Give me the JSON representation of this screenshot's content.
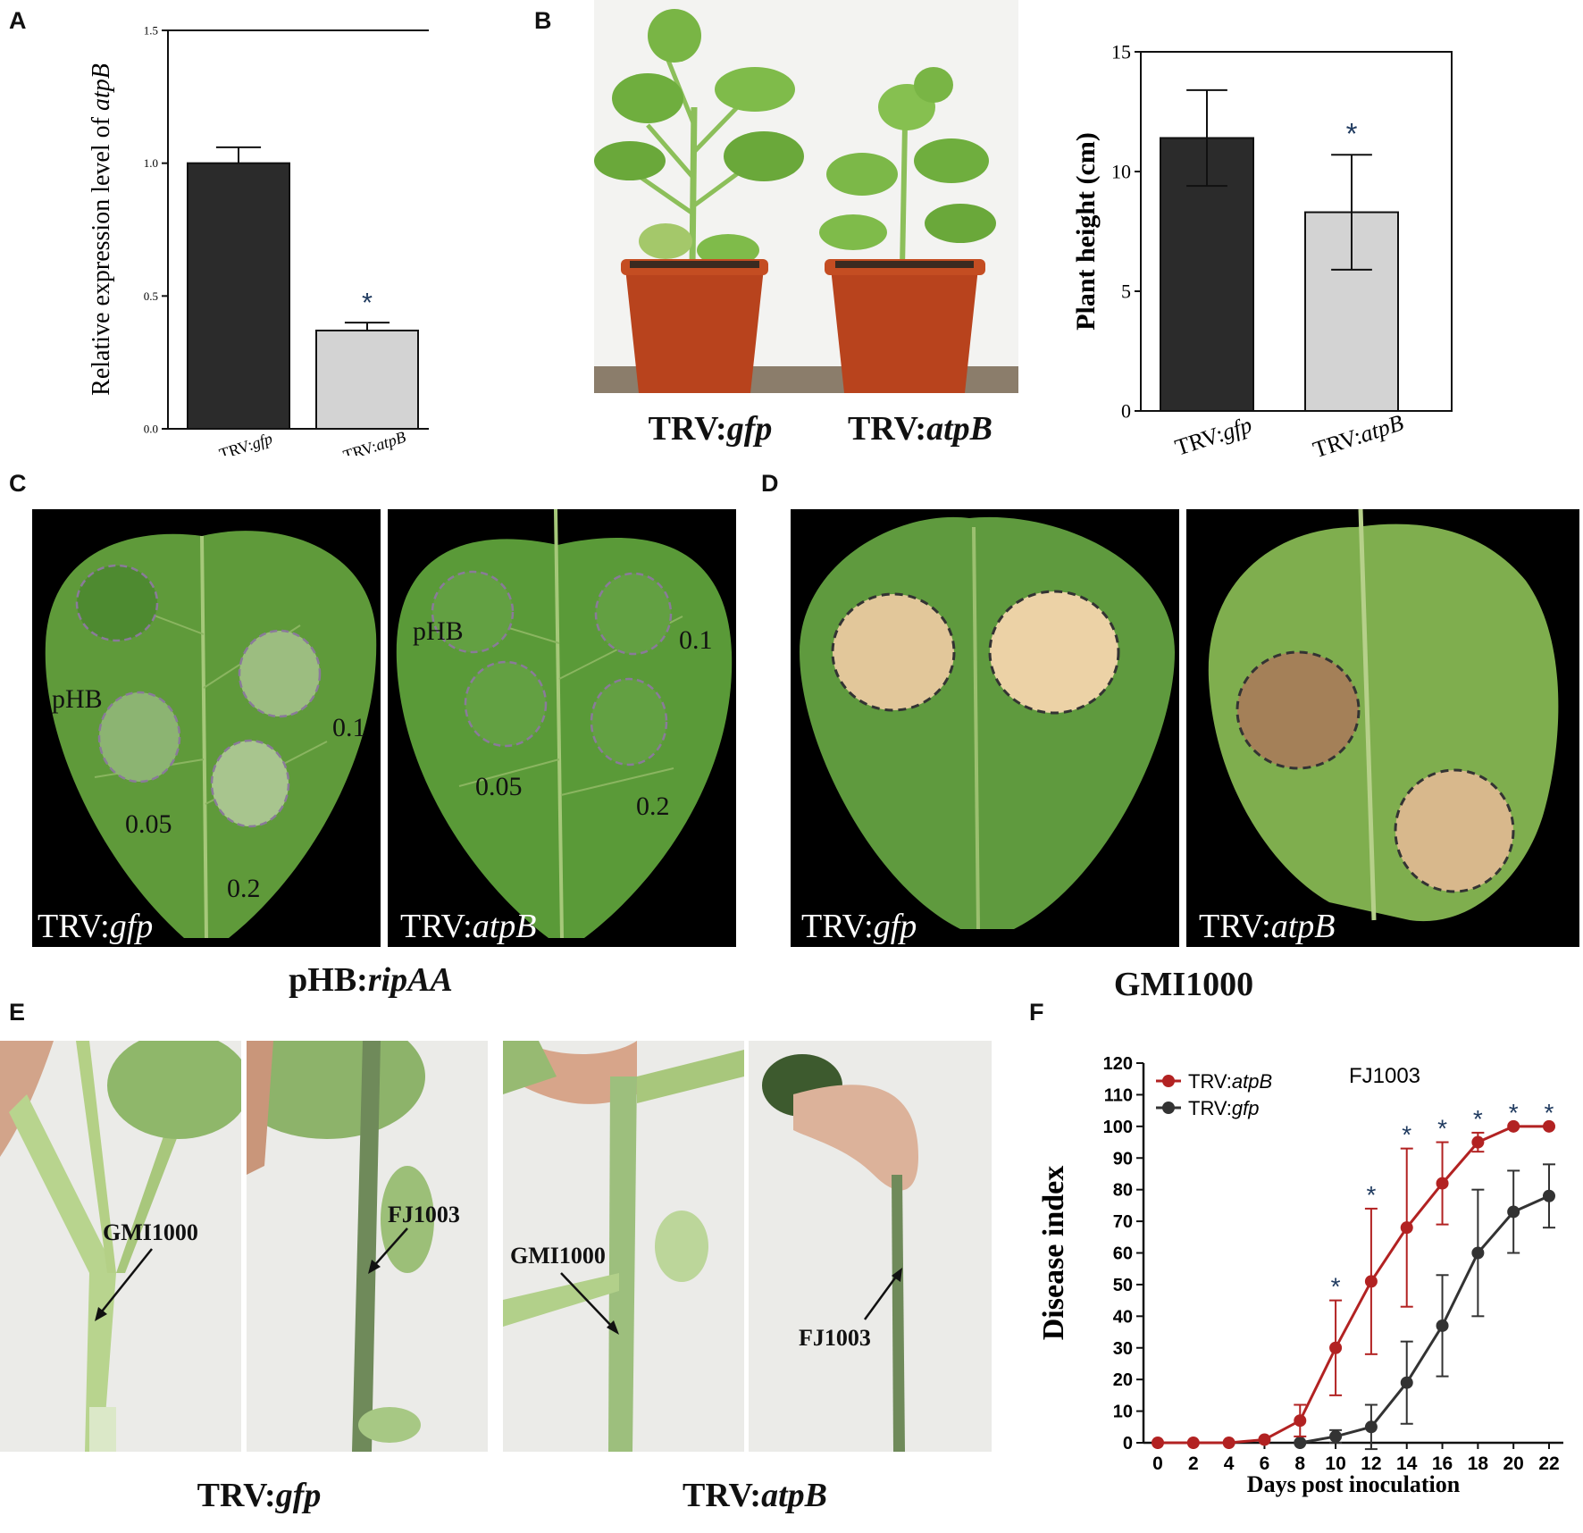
{
  "panels": {
    "A": {
      "letter": "A",
      "chart_data": {
        "type": "bar",
        "categories": [
          "TRV:gfp",
          "TRV:atpB"
        ],
        "categories_display": [
          {
            "prefix": "TRV:",
            "italic": "gfp"
          },
          {
            "prefix": "TRV:",
            "italic": "atpB"
          }
        ],
        "values": [
          1.0,
          0.37
        ],
        "errors": [
          0.06,
          0.03
        ],
        "colors": [
          "#2b2b2b",
          "#d3d3d3"
        ],
        "significance": [
          "",
          "*"
        ],
        "ylabel_prefix": "Relative expression level of ",
        "ylabel_italic": "atpB",
        "ylim": [
          0,
          1.5
        ],
        "yticks": [
          "0.0",
          "0.5",
          "1.0",
          "1.5"
        ],
        "ytick_values": [
          0,
          0.5,
          1.0,
          1.5
        ]
      }
    },
    "B": {
      "letter": "B",
      "photo_labels": [
        {
          "prefix": "TRV:",
          "italic": "gfp"
        },
        {
          "prefix": "TRV:",
          "italic": "atpB"
        }
      ],
      "chart_data": {
        "type": "bar",
        "categories": [
          "TRV:gfp",
          "TRV:atpB"
        ],
        "categories_display": [
          {
            "prefix": "TRV:",
            "italic": "gfp"
          },
          {
            "prefix": "TRV:",
            "italic": "atpB"
          }
        ],
        "values": [
          11.4,
          8.3
        ],
        "errors": [
          2.0,
          2.4
        ],
        "colors": [
          "#2b2b2b",
          "#d3d3d3"
        ],
        "significance": [
          "",
          "*"
        ],
        "ylabel": "Plant height (cm)",
        "ylim": [
          0,
          15
        ],
        "yticks": [
          "0",
          "5",
          "10",
          "15"
        ],
        "ytick_values": [
          0,
          5,
          10,
          15
        ]
      }
    },
    "C": {
      "letter": "C",
      "caption_prefix": "pHB:",
      "caption_italic": "ripAA",
      "leaves": [
        {
          "label_prefix": "TRV:",
          "label_italic": "gfp",
          "doses": [
            "pHB",
            "0.05",
            "0.2",
            "0.1"
          ]
        },
        {
          "label_prefix": "TRV:",
          "label_italic": "atpB",
          "doses": [
            "pHB",
            "0.05",
            "0.2",
            "0.1"
          ]
        }
      ]
    },
    "D": {
      "letter": "D",
      "caption": "GMI1000",
      "leaves": [
        {
          "label_prefix": "TRV:",
          "label_italic": "gfp"
        },
        {
          "label_prefix": "TRV:",
          "label_italic": "atpB"
        }
      ]
    },
    "E": {
      "letter": "E",
      "captions": [
        {
          "prefix": "TRV:",
          "italic": "gfp"
        },
        {
          "prefix": "TRV:",
          "italic": "atpB"
        }
      ],
      "stem_labels": [
        "GMI1000",
        "FJ1003",
        "GMI1000",
        "FJ1003"
      ]
    },
    "F": {
      "letter": "F",
      "chart_data": {
        "type": "line",
        "title": "FJ1003",
        "xlabel": "Days post inoculation",
        "ylabel": "Disease index",
        "xlim": [
          0,
          22
        ],
        "ylim": [
          0,
          120
        ],
        "x": [
          0,
          2,
          4,
          6,
          8,
          10,
          12,
          14,
          16,
          18,
          20,
          22
        ],
        "yticks": [
          0,
          10,
          20,
          30,
          40,
          50,
          60,
          70,
          80,
          90,
          100,
          110,
          120
        ],
        "legend_position": "top-left",
        "series": [
          {
            "name": "TRV:atpB",
            "name_prefix": "TRV:",
            "name_italic": "atpB",
            "color": "#b22222",
            "x": [
              0,
              2,
              4,
              6,
              8,
              10,
              12,
              14,
              16,
              18,
              20,
              22
            ],
            "values": [
              0,
              0,
              0,
              1,
              7,
              30,
              51,
              68,
              82,
              95,
              100,
              100
            ],
            "errors": [
              0,
              0,
              0,
              0,
              5,
              15,
              23,
              25,
              13,
              3,
              0,
              0
            ]
          },
          {
            "name": "TRV:gfp",
            "name_prefix": "TRV:",
            "name_italic": "gfp",
            "color": "#333333",
            "x": [
              8,
              10,
              12,
              14,
              16,
              18,
              20,
              22
            ],
            "values": [
              0,
              2,
              5,
              19,
              37,
              60,
              73,
              78
            ],
            "errors": [
              0,
              2,
              7,
              13,
              16,
              20,
              13,
              10
            ]
          }
        ],
        "significance_x": [
          10,
          12,
          14,
          16,
          18,
          20,
          22
        ],
        "significance_mark": "*"
      }
    }
  }
}
